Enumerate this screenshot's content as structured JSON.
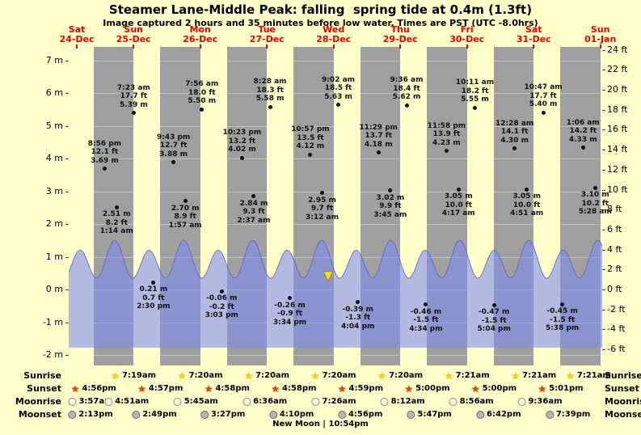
{
  "title": "Steamer Lane-Middle Peak: falling  spring tide at 0.4m (1.3ft)",
  "subtitle": "Image captured 2 hours and 35 minutes before low water. Times are PST (UTC -8.0hrs)",
  "colors": {
    "day_band": "#ffffc9",
    "night_band": "#9f9f9f",
    "tide_fill": "rgba(122,138,240,0.58)",
    "tide_edge": "rgba(90,104,216,0.9)",
    "date_red": "#e60000",
    "marker_yellow": "#f2e400",
    "marker_outline": "#8a8a22"
  },
  "chart_data": {
    "type": "area",
    "title": "Steamer Lane-Middle Peak tide heights",
    "ylabel_left": "meters",
    "ylabel_right": "feet",
    "ylim_m": [
      -2,
      7
    ],
    "ylim_ft": [
      -6,
      24
    ],
    "y_ticks_m": [
      7,
      6,
      5,
      4,
      3,
      2,
      1,
      0,
      -1,
      -2
    ],
    "y_ticks_ft": [
      24,
      22,
      20,
      18,
      16,
      14,
      12,
      10,
      8,
      6,
      4,
      2,
      0,
      -2,
      -4,
      -6
    ],
    "days": [
      {
        "name": "Sat",
        "date": "24-Dec"
      },
      {
        "name": "Sun",
        "date": "25-Dec"
      },
      {
        "name": "Mon",
        "date": "26-Dec"
      },
      {
        "name": "Tue",
        "date": "27-Dec"
      },
      {
        "name": "Wed",
        "date": "28-Dec"
      },
      {
        "name": "Thu",
        "date": "29-Dec"
      },
      {
        "name": "Fri",
        "date": "30-Dec"
      },
      {
        "name": "Sat",
        "date": "31-Dec"
      },
      {
        "name": "Sun",
        "date": "01-Jan"
      }
    ],
    "tides": [
      {
        "day": 0,
        "time": "8:56 pm",
        "ft": "12.1 ft",
        "m": "3.69 m",
        "side": "above"
      },
      {
        "day": 1,
        "time": "1:14 am",
        "ft": "8.2 ft",
        "m": "2.51 m",
        "side": "below"
      },
      {
        "day": 1,
        "time": "7:23 am",
        "ft": "17.7 ft",
        "m": "5.39 m",
        "side": "above"
      },
      {
        "day": 1,
        "time": "2:30 pm",
        "ft": "0.7 ft",
        "m": "0.21 m",
        "side": "below"
      },
      {
        "day": 1,
        "time": "9:43 pm",
        "ft": "12.7 ft",
        "m": "3.88 m",
        "side": "above"
      },
      {
        "day": 2,
        "time": "1:57 am",
        "ft": "8.9 ft",
        "m": "2.70 m",
        "side": "below"
      },
      {
        "day": 2,
        "time": "7:56 am",
        "ft": "18.0 ft",
        "m": "5.50 m",
        "side": "above"
      },
      {
        "day": 2,
        "time": "3:03 pm",
        "ft": "-0.2 ft",
        "m": "-0.06 m",
        "side": "below"
      },
      {
        "day": 2,
        "time": "10:23 pm",
        "ft": "13.2 ft",
        "m": "4.02 m",
        "side": "above"
      },
      {
        "day": 3,
        "time": "2:37 am",
        "ft": "9.3 ft",
        "m": "2.84 m",
        "side": "below"
      },
      {
        "day": 3,
        "time": "8:28 am",
        "ft": "18.3 ft",
        "m": "5.58 m",
        "side": "above"
      },
      {
        "day": 3,
        "time": "3:34 pm",
        "ft": "-0.9 ft",
        "m": "-0.26 m",
        "side": "below"
      },
      {
        "day": 3,
        "time": "10:57 pm",
        "ft": "13.5 ft",
        "m": "4.12 m",
        "side": "above"
      },
      {
        "day": 4,
        "time": "3:12 am",
        "ft": "9.7 ft",
        "m": "2.95 m",
        "side": "below"
      },
      {
        "day": 4,
        "time": "9:02 am",
        "ft": "18.5 ft",
        "m": "5.63 m",
        "side": "above"
      },
      {
        "day": 4,
        "time": "4:04 pm",
        "ft": "-1.3 ft",
        "m": "-0.39 m",
        "side": "below"
      },
      {
        "day": 4,
        "time": "11:29 pm",
        "ft": "13.7 ft",
        "m": "4.18 m",
        "side": "above"
      },
      {
        "day": 5,
        "time": "3:45 am",
        "ft": "9.9 ft",
        "m": "3.02 m",
        "side": "below"
      },
      {
        "day": 5,
        "time": "9:36 am",
        "ft": "18.4 ft",
        "m": "5.62 m",
        "side": "above"
      },
      {
        "day": 5,
        "time": "4:34 pm",
        "ft": "-1.5 ft",
        "m": "-0.46 m",
        "side": "below"
      },
      {
        "day": 5,
        "time": "11:58 pm",
        "ft": "13.9 ft",
        "m": "4.23 m",
        "side": "above"
      },
      {
        "day": 6,
        "time": "4:17 am",
        "ft": "10.0 ft",
        "m": "3.05 m",
        "side": "below"
      },
      {
        "day": 6,
        "time": "10:11 am",
        "ft": "18.2 ft",
        "m": "5.55 m",
        "side": "above"
      },
      {
        "day": 6,
        "time": "5:04 pm",
        "ft": "-1.5 ft",
        "m": "-0.47 m",
        "side": "below"
      },
      {
        "day": 7,
        "time": "12:28 am",
        "ft": "14.1 ft",
        "m": "4.30 m",
        "side": "above"
      },
      {
        "day": 7,
        "time": "4:51 am",
        "ft": "10.0 ft",
        "m": "3.05 m",
        "side": "below"
      },
      {
        "day": 7,
        "time": "10:47 am",
        "ft": "17.7 ft",
        "m": "5.40 m",
        "side": "above"
      },
      {
        "day": 7,
        "time": "5:38 pm",
        "ft": "-1.5 ft",
        "m": "-0.45 m",
        "side": "below"
      },
      {
        "day": 8,
        "time": "1:06 am",
        "ft": "14.2 ft",
        "m": "4.33 m",
        "side": "above"
      },
      {
        "day": 8,
        "time": "5:28 am",
        "ft": "10.2 ft",
        "m": "3.10 m",
        "side": "below"
      }
    ],
    "current_marker": {
      "height_m": "0.4m",
      "height_ft": "1.3ft",
      "state": "falling"
    }
  },
  "astro": {
    "rows": [
      {
        "label": "Sunrise",
        "icon": "sunrise-star-icon",
        "times": [
          "7:19am",
          "7:20am",
          "7:20am",
          "7:20am",
          "7:20am",
          "7:21am",
          "7:21am",
          "7:21am"
        ]
      },
      {
        "label": "Sunset",
        "icon": "sunset-star-icon",
        "times": [
          "4:56pm",
          "4:57pm",
          "4:58pm",
          "4:58pm",
          "4:59pm",
          "5:00pm",
          "5:00pm",
          "5:01pm"
        ]
      },
      {
        "label": "Moonrise",
        "icon": "moonrise-icon",
        "times": [
          "3:57am",
          "4:51am",
          "5:45am",
          "6:36am",
          "7:26am",
          "8:12am",
          "8:56am",
          "9:36am"
        ]
      },
      {
        "label": "Moonset",
        "icon": "moonset-icon",
        "times": [
          "2:13pm",
          "2:49pm",
          "3:27pm",
          "4:10pm",
          "4:56pm",
          "5:47pm",
          "6:42pm",
          "7:39pm"
        ]
      }
    ],
    "moon_event": "New Moon | 10:54pm"
  }
}
